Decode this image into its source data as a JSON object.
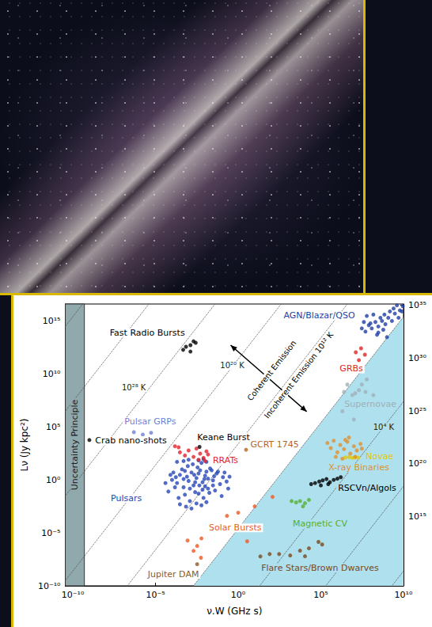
{
  "chart_data": {
    "type": "scatter",
    "log": true,
    "grid": false,
    "x_label": "ν.W (GHz s)",
    "y_label": "Lν (Jy kpc²)",
    "xlim": [
      3.5e-11,
      10000000000.0
    ],
    "ylim": [
      1e-10,
      4e+16
    ],
    "y2lim": [
      300000000.0,
      1.3e+35
    ],
    "xticks": [
      {
        "value": 1e-10,
        "label": "10⁻¹⁰"
      },
      {
        "value": 1e-05,
        "label": "10⁻⁵"
      },
      {
        "value": 1,
        "label": "10⁰"
      },
      {
        "value": 100000.0,
        "label": "10⁵"
      },
      {
        "value": 10000000000.0,
        "label": "10¹⁰"
      }
    ],
    "yticks": [
      {
        "value": 1e-10,
        "label": "10⁻¹⁰"
      },
      {
        "value": 1e-05,
        "label": "10⁻⁵"
      },
      {
        "value": 1,
        "label": "10⁰"
      },
      {
        "value": 100000.0,
        "label": "10⁵"
      },
      {
        "value": 10000000000.0,
        "label": "10¹⁰"
      },
      {
        "value": 1000000000000000.0,
        "label": "10¹⁵"
      }
    ],
    "y2ticks": [
      {
        "value": 1000000000000000.0,
        "label": "10¹⁵"
      },
      {
        "value": 1e+20,
        "label": "10²⁰"
      },
      {
        "value": 1e+25,
        "label": "10²⁵"
      },
      {
        "value": 1e+30,
        "label": "10³⁰"
      },
      {
        "value": 1e+35,
        "label": "10³⁵"
      }
    ],
    "uncertainty_principle": {
      "text": "Uncertainty Principle",
      "xlim": [
        3.5e-11,
        5e-10
      ],
      "color": "#8fa9ad"
    },
    "incoherent_region": {
      "color": "#aee0ee",
      "boundary": [
        [
          3.5e-11,
          3.1e-26
        ],
        [
          10000000000.0,
          2500000000000000.0
        ]
      ]
    },
    "temperature_lines": [
      [
        [
          3.5e-11,
          310000000000000.0
        ],
        [
          10000000000.0,
          2.5e+55
        ]
      ],
      [
        [
          3.5e-11,
          3100000.0
        ],
        [
          10000000000.0,
          2.5e+47
        ]
      ],
      [
        [
          3.5e-11,
          0.031
        ],
        [
          10000000000.0,
          2.5e+39
        ]
      ],
      [
        [
          3.5e-11,
          3.1e-10
        ],
        [
          10000000000.0,
          2.5e+31
        ]
      ],
      [
        [
          3.5e-11,
          3.1e-18
        ],
        [
          10000000000.0,
          2.5e+23
        ]
      ],
      [
        [
          3.5e-11,
          3.1e-26
        ],
        [
          10000000000.0,
          2500000000000000.0
        ]
      ],
      [
        [
          3.5e-11,
          3.1e-34
        ],
        [
          10000000000.0,
          25000000.0
        ]
      ],
      [
        [
          3.5e-11,
          3.1e-42
        ],
        [
          10000000000.0,
          0.25
        ]
      ],
      [
        [
          3.5e-11,
          3.1e-50
        ],
        [
          10000000000.0,
          2.5e-09
        ]
      ]
    ],
    "temperature_labels": [
      {
        "text": "10²⁸ K",
        "at": [
          4.9e-07,
          490000000.0
        ]
      },
      {
        "text": "10²⁰ K",
        "at": [
          0.44,
          60000000000.0
        ]
      },
      {
        "text": "10⁴ K",
        "at": [
          630000000.0,
          100000.0
        ]
      }
    ],
    "emission_labels": [
      {
        "text": "Coherent Emission",
        "at": [
          107,
          21000000000.0
        ]
      },
      {
        "text": "Incoherent Emission 10¹² K",
        "at": [
          4600,
          7600000000.0
        ]
      }
    ],
    "arrow": [
      [
        0.35,
        5200000000000.0
      ],
      [
        14000.0,
        2800000.0
      ]
    ],
    "series": [
      {
        "name": "Fast Radio Bursts",
        "color": "#000000",
        "label_at": [
          3.2e-06,
          80000000000000.0
        ],
        "values": [
          [
            0.00047,
            1900000000000.0
          ],
          [
            0.0007,
            3700000000000.0
          ],
          [
            0.0013,
            5200000000000.0
          ],
          [
            0.002,
            12000000000000.0
          ],
          [
            0.0013,
            1300000000000.0
          ],
          [
            0.0027,
            8700000000000.0
          ]
        ]
      },
      {
        "name": "Crab nano-shots",
        "color": "#000000",
        "label_at": [
          3.3e-07,
          4900.0
        ],
        "values": [
          [
            1e-09,
            5800.0
          ]
        ]
      },
      {
        "name": "Pulsar GRPs",
        "color": "#6f7fd6",
        "label_at": [
          4.8e-06,
          300000.0
        ],
        "values": [
          [
            4.9e-07,
            32000.0
          ],
          [
            1.7e-06,
            19000.0
          ],
          [
            5.4e-06,
            28000.0
          ]
        ]
      },
      {
        "name": "Pulsars",
        "color": "#2546b8",
        "label_at": [
          1.7e-07,
          0.017
        ],
        "values": [
          [
            0.0001,
            1
          ],
          [
            0.0002,
            0.5
          ],
          [
            0.0003,
            3
          ],
          [
            0.0005,
            0.2
          ],
          [
            0.0008,
            2
          ],
          [
            0.001,
            0.8
          ],
          [
            0.0015,
            5
          ],
          [
            0.002,
            0.3
          ],
          [
            0.003,
            1.5
          ],
          [
            0.004,
            0.05
          ],
          [
            0.005,
            8
          ],
          [
            0.007,
            0.6
          ],
          [
            0.01,
            2.5
          ],
          [
            0.015,
            0.15
          ],
          [
            0.02,
            12
          ],
          [
            0.03,
            0.9
          ],
          [
            0.05,
            4
          ],
          [
            0.08,
            0.4
          ],
          [
            0.12,
            1.8
          ],
          [
            0.2,
            0.7
          ],
          [
            6e-05,
            0.08
          ],
          [
            0.00012,
            5
          ],
          [
            0.00025,
            0.02
          ],
          [
            0.0004,
            10
          ],
          [
            0.0006,
            0.04
          ],
          [
            0.0009,
            20
          ],
          [
            0.0012,
            0.01
          ],
          [
            0.0018,
            30
          ],
          [
            0.0025,
            0.07
          ],
          [
            0.0035,
            15
          ],
          [
            0.0045,
            0.3
          ],
          [
            0.006,
            40
          ],
          [
            0.008,
            0.02
          ],
          [
            0.012,
            6
          ],
          [
            0.018,
            0.06
          ],
          [
            0.025,
            8
          ],
          [
            0.04,
            0.1
          ],
          [
            0.06,
            6
          ],
          [
            0.1,
            0.03
          ],
          [
            0.15,
            5
          ],
          [
            0.0003,
            0.005
          ],
          [
            0.0007,
            0.003
          ],
          [
            0.0015,
            0.002
          ],
          [
            0.003,
            0.006
          ],
          [
            0.006,
            0.004
          ],
          [
            0.012,
            0.008
          ],
          [
            0.0002,
            50
          ],
          [
            0.0005,
            60
          ],
          [
            0.001,
            80
          ],
          [
            0.004,
            70
          ],
          [
            0.008,
            90
          ],
          [
            0.012,
            50
          ],
          [
            0.3,
            2
          ],
          [
            0.25,
            0.15
          ],
          [
            4e-05,
            0.5
          ],
          [
            8e-05,
            3
          ],
          [
            0.00015,
            0.2
          ],
          [
            0.0022,
            3
          ],
          [
            0.009,
            1.2
          ],
          [
            0.035,
            2.2
          ],
          [
            0.007,
            0.12
          ],
          [
            0.00017,
            1.8
          ],
          [
            0.03,
            0.3
          ],
          [
            0.01,
            0.25
          ],
          [
            0.0005,
            1.2
          ],
          [
            0.0025,
            0.6
          ],
          [
            0.004,
            4
          ],
          [
            0.015,
            1.3
          ],
          [
            0.0006,
            7
          ],
          [
            0.0012,
            0.15
          ]
        ]
      },
      {
        "name": "RRATs",
        "color": "#e3232c",
        "label_at": [
          0.17,
          66
        ],
        "values": [
          [
            0.0003,
            400
          ],
          [
            0.0006,
            200
          ],
          [
            0.001,
            600
          ],
          [
            0.002,
            150
          ],
          [
            0.003,
            900
          ],
          [
            0.005,
            300
          ],
          [
            0.008,
            120
          ],
          [
            0.012,
            500
          ],
          [
            0.015,
            250
          ],
          [
            0.00015,
            1500
          ],
          [
            0.00025,
            1200
          ],
          [
            0.004,
            80
          ],
          [
            0.01,
            60
          ]
        ]
      },
      {
        "name": "Keane Burst",
        "color": "#000000",
        "label_at": [
          0.13,
          11000.0
        ],
        "values": [
          [
            0.0046,
            1300.0
          ]
        ]
      },
      {
        "name": "GCRT 1745",
        "color": "#b8661a",
        "label_at": [
          160,
          2100.0
        ],
        "values": [
          [
            3,
            700
          ]
        ]
      },
      {
        "name": "Jupiter DAM",
        "color": "#8b5a2b",
        "label_at": [
          0.00012,
          1.2e-09
        ],
        "values": [
          [
            0.0033,
            1.1e-08
          ]
        ]
      },
      {
        "name": "Solar Bursts",
        "color": "#ee5a24",
        "label_at": [
          0.66,
          3e-05
        ],
        "values": [
          [
            0.00087,
            1.9e-06
          ],
          [
            0.0033,
            5.8e-07
          ],
          [
            0.006,
            3e-06
          ],
          [
            0.21,
            0.0004
          ],
          [
            1,
            0.0008
          ],
          [
            10,
            0.0032
          ],
          [
            120,
            0.025
          ],
          [
            3.5,
            1.6e-06
          ],
          [
            0.0056,
            4.5e-08
          ],
          [
            0.002,
            2e-07
          ]
        ]
      },
      {
        "name": "Magnetic CV",
        "color": "#55b030",
        "label_at": [
          89000.0,
          7e-05
        ],
        "values": [
          [
            1700.0,
            0.01
          ],
          [
            3200.0,
            0.0074
          ],
          [
            5500.0,
            0.01
          ],
          [
            8300.0,
            0.0032
          ],
          [
            11000.0,
            0.0063
          ],
          [
            19000.0,
            0.013
          ]
        ]
      },
      {
        "name": "Flare Stars/Brown Dwarves",
        "color": "#7b4a1b",
        "label_at": [
          89000.0,
          4.7e-09
        ],
        "values": [
          [
            22,
            6e-08
          ],
          [
            80,
            1e-07
          ],
          [
            1400.0,
            7.4e-08
          ],
          [
            5500.0,
            2.1e-07
          ],
          [
            11000.0,
            6.2e-08
          ],
          [
            19000.0,
            3.5e-07
          ],
          [
            72000.0,
            1.4e-06
          ],
          [
            120000.0,
            8e-07
          ],
          [
            300,
            1e-07
          ]
        ]
      },
      {
        "name": "RSCVn/Algols",
        "color": "#000000",
        "label_at": [
          63000000.0,
          0.16
        ],
        "values": [
          [
            26000.0,
            0.4
          ],
          [
            45000.0,
            0.5
          ],
          [
            80000.0,
            0.7
          ],
          [
            130000.0,
            0.9
          ],
          [
            220000.0,
            1.2
          ],
          [
            350000.0,
            0.6
          ],
          [
            600000.0,
            1
          ],
          [
            1000000.0,
            1.3
          ],
          [
            1600000.0,
            1.8
          ],
          [
            100000.0,
            0.3
          ],
          [
            280000.0,
            0.4
          ]
        ]
      },
      {
        "name": "Novae",
        "color": "#e6c800",
        "label_at": [
          360000000.0,
          160
        ],
        "values": [
          [
            3000000.0,
            130
          ],
          [
            5000000.0,
            140
          ],
          [
            8000000.0,
            120
          ],
          [
            12000000.0,
            135
          ],
          [
            18000000.0,
            125
          ]
        ]
      },
      {
        "name": "X-ray Binaries",
        "color": "#e0902f",
        "label_at": [
          20000000.0,
          15
        ],
        "values": [
          [
            250000.0,
            3000.0
          ],
          [
            400000.0,
            1000.0
          ],
          [
            600000.0,
            5000.0
          ],
          [
            1000000.0,
            400
          ],
          [
            1500000.0,
            2000.0
          ],
          [
            2500000.0,
            800
          ],
          [
            4000000.0,
            4000.0
          ],
          [
            6000000.0,
            300
          ],
          [
            10000000.0,
            1500.0
          ],
          [
            15000000.0,
            600
          ],
          [
            25000000.0,
            2500.0
          ],
          [
            3000000.0,
            6000.0
          ],
          [
            800000.0,
            150
          ],
          [
            2000000.0,
            100
          ],
          [
            5000000.0,
            10000.0
          ],
          [
            12000000.0,
            150
          ],
          [
            30000000.0,
            900
          ]
        ]
      },
      {
        "name": "Supernovae",
        "color": "#9fb0b8",
        "label_at": [
          100000000.0,
          13000000.0
        ],
        "values": [
          [
            2000000.0,
            3000000.0
          ],
          [
            8000000.0,
            100000000.0
          ],
          [
            12000000.0,
            150000000.0
          ],
          [
            20000000.0,
            300000000.0
          ],
          [
            30000000.0,
            1000000000.0
          ],
          [
            50000000.0,
            200000000.0
          ],
          [
            10000000.0,
            500000.0
          ],
          [
            4000000.0,
            1000000000.0
          ],
          [
            60000000.0,
            3000000000.0
          ],
          [
            150000000.0,
            100000000.0
          ],
          [
            2500000.0,
            200000000.0
          ]
        ]
      },
      {
        "name": "GRBs",
        "color": "#e02424",
        "label_at": [
          7000000.0,
          30000000000.0
        ],
        "values": [
          [
            13000000.0,
            1100000000000.0
          ],
          [
            27000000.0,
            2600000000000.0
          ],
          [
            20000000.0,
            200000000000.0
          ],
          [
            46000000.0,
            660000000000.0
          ]
        ]
      },
      {
        "name": "AGN/Blazar/QSO",
        "color": "#1f3fa6",
        "label_at": [
          80000.0,
          3200000000000000.0
        ],
        "values": [
          [
            30000000.0,
            200000000000000.0
          ],
          [
            50000000.0,
            100000000000000.0
          ],
          [
            80000000.0,
            400000000000000.0
          ],
          [
            120000000.0,
            200000000000000.0
          ],
          [
            200000000.0,
            800000000000000.0
          ],
          [
            300000000.0,
            300000000000000.0
          ],
          [
            500000000.0,
            1000000000000000.0
          ],
          [
            800000000.0,
            500000000000000.0
          ],
          [
            1200000000.0,
            2000000000000000.0
          ],
          [
            2000000000.0,
            1000000000000000.0
          ],
          [
            3000000000.0,
            5000000000000000.0
          ],
          [
            5000000000.0,
            2000000000000000.0
          ],
          [
            8000000000.0,
            8000000000000000.0
          ],
          [
            100000000.0,
            600000000000000.0
          ],
          [
            400000000.0,
            2000000000000000.0
          ],
          [
            700000000.0,
            4000000000000000.0
          ],
          [
            1500000000.0,
            8000000000000000.0
          ],
          [
            2500000000.0,
            1.5e+16
          ],
          [
            4000000000.0,
            3e+16
          ],
          [
            6000000000.0,
            1e+16
          ],
          [
            40000000.0,
            800000000000000.0
          ],
          [
            250000000.0,
            50000000000000.0
          ],
          [
            600000000.0,
            150000000000000.0
          ],
          [
            1000000000.0,
            30000000000000.0
          ],
          [
            300000000.0,
            80000000000000.0
          ],
          [
            150000000.0,
            4000000000000000.0
          ],
          [
            60000000.0,
            3000000000000000.0
          ],
          [
            9000000000.0,
            2.5e+16
          ]
        ]
      }
    ]
  }
}
